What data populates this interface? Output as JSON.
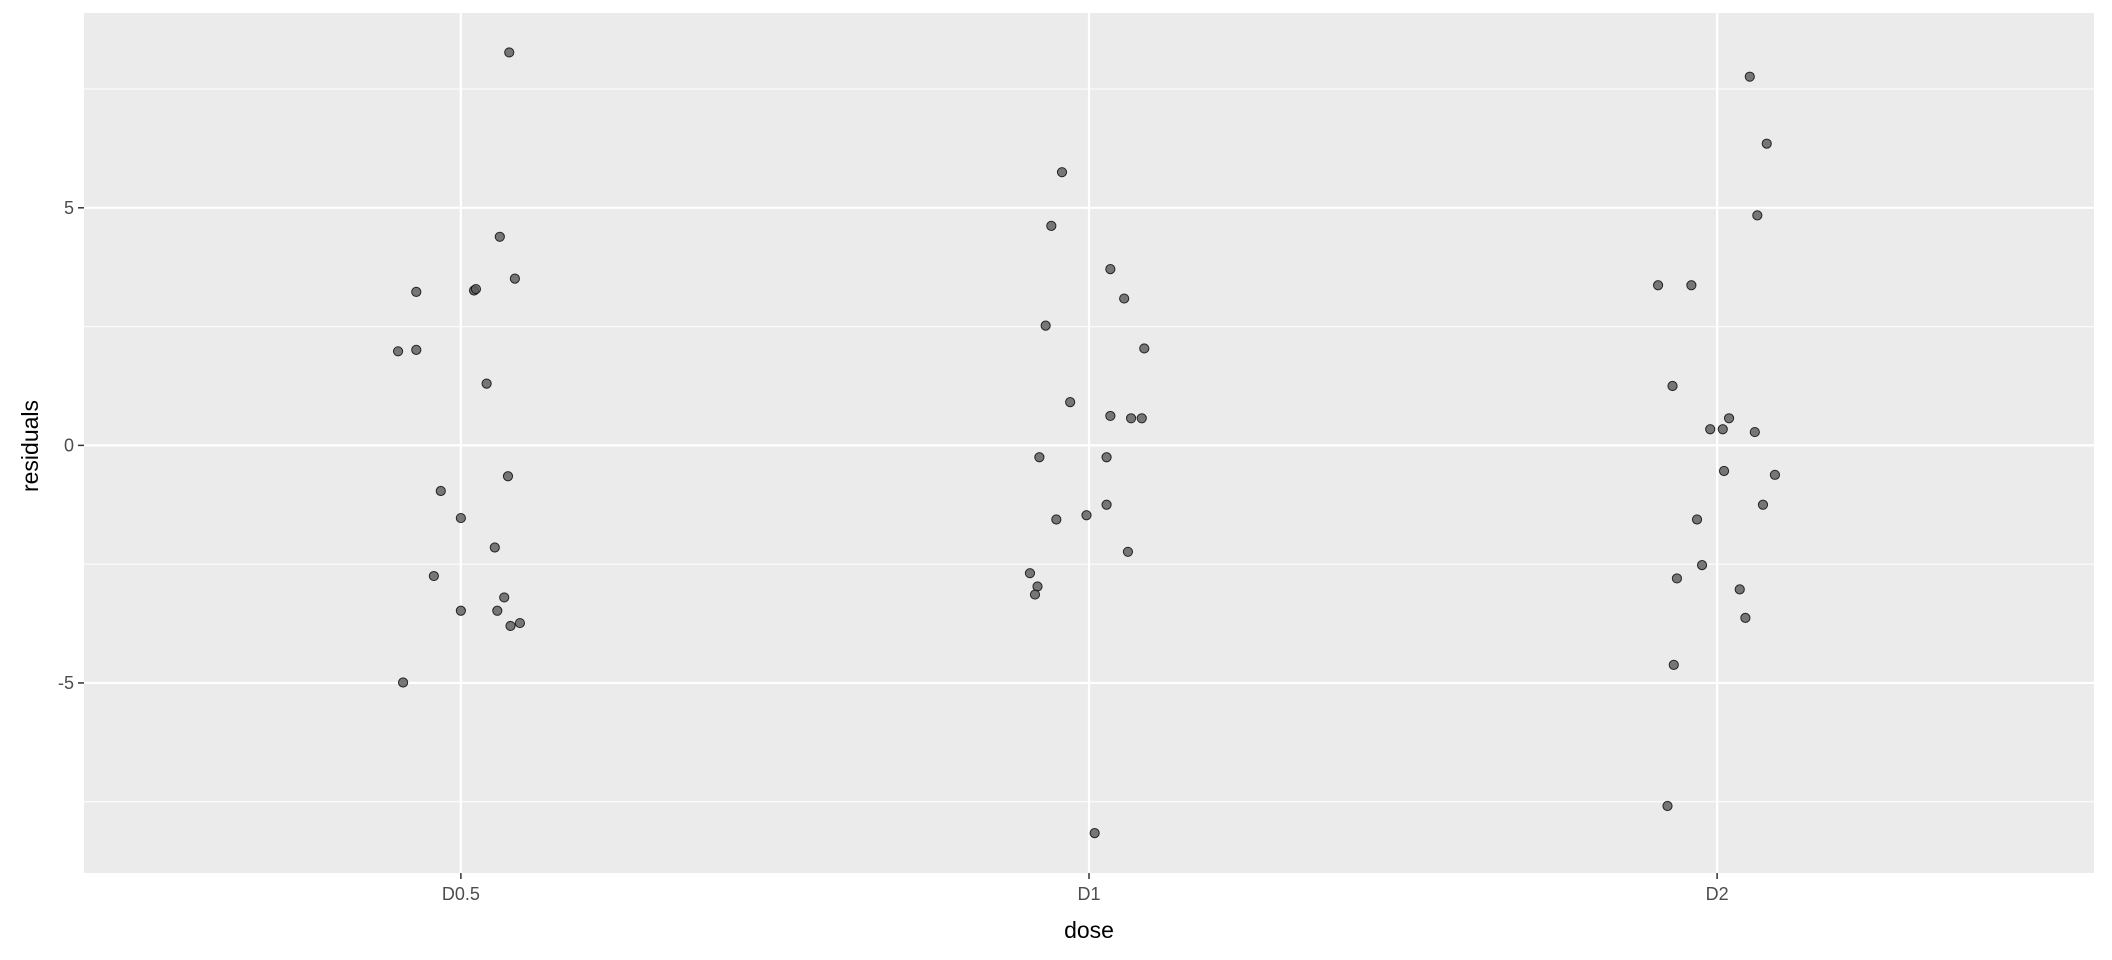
{
  "chart_data": {
    "type": "scatter",
    "title": "",
    "xlabel": "dose",
    "ylabel": "residuals",
    "categories": [
      "D0.5",
      "D1",
      "D2"
    ],
    "ylim": [
      -9.0,
      9.1
    ],
    "yticks": [
      -5,
      0,
      5
    ],
    "ytick_labels": [
      "-5",
      "0",
      "5"
    ],
    "grid": true,
    "background": "#EBEBEB",
    "point_color": "#595959",
    "points": [
      {
        "category": "D0.5",
        "jitter": 0.077,
        "y": 8.27
      },
      {
        "category": "D0.5",
        "jitter": 0.062,
        "y": 4.39
      },
      {
        "category": "D0.5",
        "jitter": -0.071,
        "y": 3.23
      },
      {
        "category": "D0.5",
        "jitter": 0.021,
        "y": 3.26
      },
      {
        "category": "D0.5",
        "jitter": 0.024,
        "y": 3.29
      },
      {
        "category": "D0.5",
        "jitter": 0.086,
        "y": 3.51
      },
      {
        "category": "D0.5",
        "jitter": -0.1,
        "y": 1.98
      },
      {
        "category": "D0.5",
        "jitter": -0.071,
        "y": 2.01
      },
      {
        "category": "D0.5",
        "jitter": 0.041,
        "y": 1.3
      },
      {
        "category": "D0.5",
        "jitter": -0.032,
        "y": -0.96
      },
      {
        "category": "D0.5",
        "jitter": 0.075,
        "y": -0.65
      },
      {
        "category": "D0.5",
        "jitter": 0.0,
        "y": -1.53
      },
      {
        "category": "D0.5",
        "jitter": 0.054,
        "y": -2.15
      },
      {
        "category": "D0.5",
        "jitter": -0.043,
        "y": -2.75
      },
      {
        "category": "D0.5",
        "jitter": 0.069,
        "y": -3.2
      },
      {
        "category": "D0.5",
        "jitter": 0.0,
        "y": -3.48
      },
      {
        "category": "D0.5",
        "jitter": 0.058,
        "y": -3.48
      },
      {
        "category": "D0.5",
        "jitter": 0.079,
        "y": -3.8
      },
      {
        "category": "D0.5",
        "jitter": 0.094,
        "y": -3.74
      },
      {
        "category": "D0.5",
        "jitter": -0.092,
        "y": -4.99
      },
      {
        "category": "D1",
        "jitter": -0.043,
        "y": 5.75
      },
      {
        "category": "D1",
        "jitter": -0.06,
        "y": 4.62
      },
      {
        "category": "D1",
        "jitter": 0.034,
        "y": 3.71
      },
      {
        "category": "D1",
        "jitter": 0.056,
        "y": 3.09
      },
      {
        "category": "D1",
        "jitter": -0.069,
        "y": 2.52
      },
      {
        "category": "D1",
        "jitter": 0.088,
        "y": 2.04
      },
      {
        "category": "D1",
        "jitter": -0.03,
        "y": 0.91
      },
      {
        "category": "D1",
        "jitter": 0.034,
        "y": 0.62
      },
      {
        "category": "D1",
        "jitter": 0.067,
        "y": 0.57
      },
      {
        "category": "D1",
        "jitter": 0.084,
        "y": 0.57
      },
      {
        "category": "D1",
        "jitter": -0.079,
        "y": -0.25
      },
      {
        "category": "D1",
        "jitter": 0.028,
        "y": -0.25
      },
      {
        "category": "D1",
        "jitter": 0.028,
        "y": -1.25
      },
      {
        "category": "D1",
        "jitter": -0.052,
        "y": -1.56
      },
      {
        "category": "D1",
        "jitter": -0.004,
        "y": -1.47
      },
      {
        "category": "D1",
        "jitter": 0.062,
        "y": -2.24
      },
      {
        "category": "D1",
        "jitter": -0.094,
        "y": -2.69
      },
      {
        "category": "D1",
        "jitter": -0.082,
        "y": -2.97
      },
      {
        "category": "D1",
        "jitter": -0.086,
        "y": -3.14
      },
      {
        "category": "D1",
        "jitter": 0.009,
        "y": -8.16
      },
      {
        "category": "D2",
        "jitter": 0.052,
        "y": 7.76
      },
      {
        "category": "D2",
        "jitter": 0.079,
        "y": 6.35
      },
      {
        "category": "D2",
        "jitter": 0.064,
        "y": 4.84
      },
      {
        "category": "D2",
        "jitter": -0.094,
        "y": 3.37
      },
      {
        "category": "D2",
        "jitter": -0.041,
        "y": 3.37
      },
      {
        "category": "D2",
        "jitter": -0.071,
        "y": 1.25
      },
      {
        "category": "D2",
        "jitter": 0.019,
        "y": 0.57
      },
      {
        "category": "D2",
        "jitter": -0.011,
        "y": 0.34
      },
      {
        "category": "D2",
        "jitter": 0.009,
        "y": 0.34
      },
      {
        "category": "D2",
        "jitter": 0.06,
        "y": 0.28
      },
      {
        "category": "D2",
        "jitter": 0.011,
        "y": -0.54
      },
      {
        "category": "D2",
        "jitter": 0.092,
        "y": -0.62
      },
      {
        "category": "D2",
        "jitter": 0.073,
        "y": -1.25
      },
      {
        "category": "D2",
        "jitter": -0.032,
        "y": -1.56
      },
      {
        "category": "D2",
        "jitter": -0.024,
        "y": -2.52
      },
      {
        "category": "D2",
        "jitter": -0.064,
        "y": -2.8
      },
      {
        "category": "D2",
        "jitter": 0.036,
        "y": -3.03
      },
      {
        "category": "D2",
        "jitter": 0.045,
        "y": -3.63
      },
      {
        "category": "D2",
        "jitter": -0.069,
        "y": -4.62
      },
      {
        "category": "D2",
        "jitter": -0.079,
        "y": -7.59
      }
    ]
  }
}
